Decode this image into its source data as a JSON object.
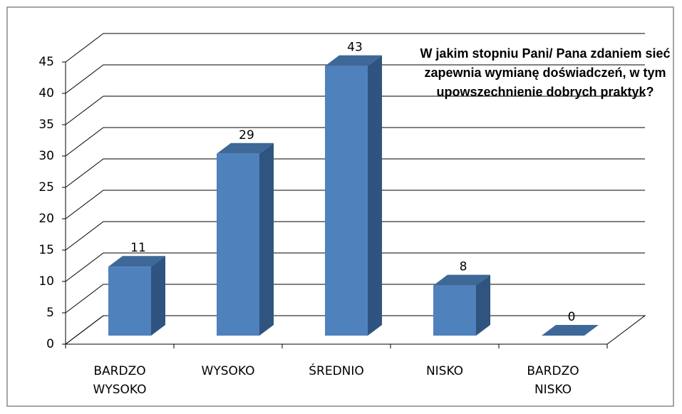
{
  "chart_data": {
    "type": "bar3d",
    "title": "W jakim stopniu Pani/ Pana zdaniem sieć zapewnia wymianę doświadczeń, w tym upowszechnienie dobrych praktyk?",
    "categories": [
      "BARDZO WYSOKO",
      "WYSOKO",
      "ŚREDNIO",
      "NISKO",
      "BARDZO NISKO"
    ],
    "values": [
      11,
      29,
      43,
      8,
      0
    ],
    "color": "#4f81bd",
    "ylim": [
      0,
      45
    ],
    "yticks": [
      0,
      5,
      10,
      15,
      20,
      25,
      30,
      35,
      40,
      45
    ],
    "grid": true
  }
}
